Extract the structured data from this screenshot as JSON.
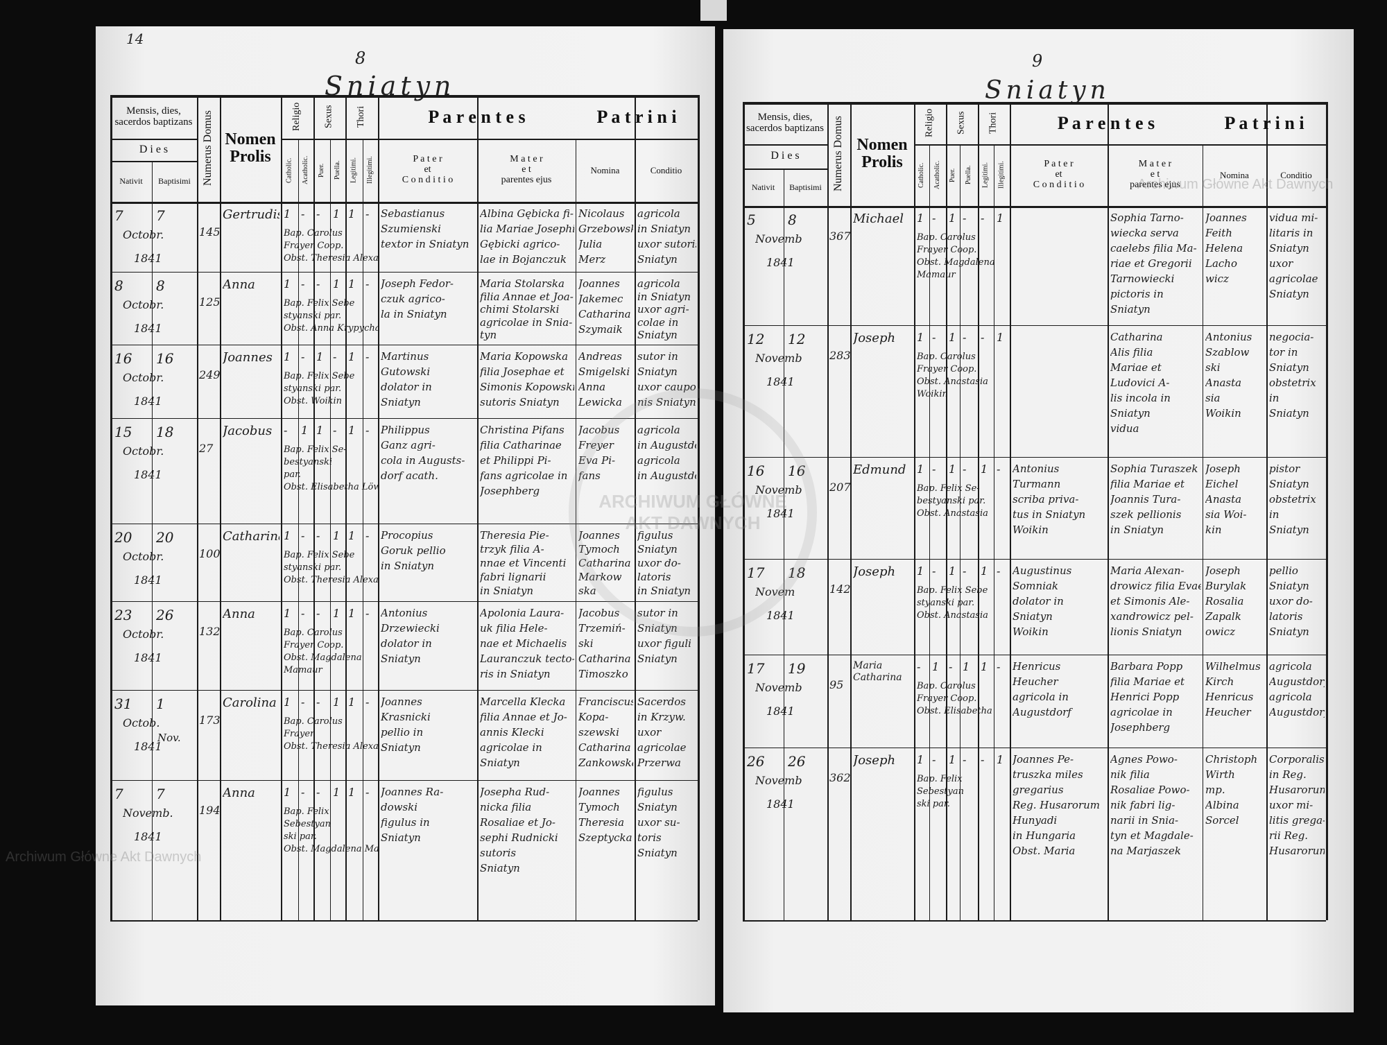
{
  "document": {
    "left_page": {
      "folio_mark": "14",
      "page_number": "8",
      "place": "Sniatyn"
    },
    "right_page": {
      "page_number": "9",
      "place": "Sniatyn"
    },
    "watermark": "Archiwum Główne Akt Dawnych",
    "seal_text": "ARCHIWUM GŁÓWNE AKT DAWNYCH"
  },
  "header": {
    "mensis": "Mensis, dies, sacerdos baptizans",
    "dies": "D i e s",
    "nativit": "Nativit",
    "baptisimi": "Baptisimi",
    "numerus_domus": "Numerus Domus",
    "nomen_prolis": "Nomen Prolis",
    "religio": "Religio",
    "catholic": "Catholic.",
    "acatholic": "Acatholic.",
    "sexus": "Sexus",
    "puer": "Puer.",
    "puella": "Puella.",
    "thori": "Thori",
    "legitimi": "Legitimi.",
    "illegitimi": "Illegitimi.",
    "parentes": "P a r e n t e s",
    "pater": "P a t e r\net\nC o n d i t i o",
    "mater": "M a t e r\ne t\nparentes ejus",
    "patrini": "P a t r i n i",
    "nomina": "Nomina",
    "conditio": "Conditio"
  },
  "left_entries": [
    {
      "nativit": "7",
      "baptisimi": "7",
      "month": "Octobr.",
      "year": "1841",
      "domus": "145",
      "nomen": "Gertrudis",
      "marks": [
        "1",
        "-",
        "-",
        "1",
        "1",
        "-"
      ],
      "baptizans": [
        "Bap. Carolus",
        "Frayer Coop.",
        "Obst. Theresia Alexandrowicz"
      ],
      "pater": [
        "Sebastianus",
        "Szumienski",
        "textor in Sniatyn"
      ],
      "mater": [
        "Albina Gębicka fi-",
        "lia Mariae Josephi",
        "Gębicki agrico-",
        "lae in Bojanczuk"
      ],
      "nomina": [
        "Nicolaus",
        "Grzebowski",
        "Julia",
        "Merz"
      ],
      "conditio": [
        "agricola",
        "in Sniatyn",
        "uxor sutoris",
        "Sniatyn"
      ]
    },
    {
      "nativit": "8",
      "baptisimi": "8",
      "month": "Octobr.",
      "year": "1841",
      "domus": "125",
      "nomen": "Anna",
      "marks": [
        "1",
        "-",
        "-",
        "1",
        "1",
        "-"
      ],
      "baptizans": [
        "Bap. Felix Sebe",
        "styanski par.",
        "Obst. Anna Krypycha"
      ],
      "pater": [
        "Joseph Fedor-",
        "czuk agrico-",
        "la in Sniatyn"
      ],
      "mater": [
        "Maria Stolarska",
        "filia Annae et Joa-",
        "chimi Stolarski",
        "agricolae in Snia-",
        "tyn"
      ],
      "nomina": [
        "Joannes",
        "Jakemec",
        "Catharina",
        "Szymaik"
      ],
      "conditio": [
        "agricola",
        "in Sniatyn",
        "uxor agri-",
        "colae in",
        "Sniatyn"
      ]
    },
    {
      "nativit": "16",
      "baptisimi": "16",
      "month": "Octobr.",
      "year": "1841",
      "domus": "249",
      "nomen": "Joannes",
      "marks": [
        "1",
        "-",
        "1",
        "-",
        "1",
        "-"
      ],
      "baptizans": [
        "Bap. Felix Sebe",
        "styanski par.",
        "Obst. Woikin"
      ],
      "pater": [
        "Martinus",
        "Gutowski",
        "dolator in",
        "Sniatyn"
      ],
      "mater": [
        "Maria Kopowska",
        "filia Josephae et",
        "Simonis Kopowski",
        "sutoris Sniatyn"
      ],
      "nomina": [
        "Andreas",
        "Smigelski",
        "Anna",
        "Lewicka"
      ],
      "conditio": [
        "sutor in",
        "Sniatyn",
        "uxor caupo-",
        "nis Sniatyn"
      ]
    },
    {
      "nativit": "15",
      "baptisimi": "18",
      "month": "Octobr.",
      "year": "1841",
      "domus": "27",
      "nomen": "Jacobus",
      "marks": [
        "-",
        "1",
        "1",
        "-",
        "1",
        "-"
      ],
      "baptizans": [
        "Bap. Felix Se-",
        "bestyanski",
        "par.",
        "Obst. Elisabetha Löwenberg"
      ],
      "pater": [
        "Philippus",
        "Ganz agri-",
        "cola in Augusts-",
        "dorf acath."
      ],
      "mater": [
        "Christina Pifans",
        "filia Catharinae",
        "et Philippi Pi-",
        "fans agricolae in",
        "Josephberg"
      ],
      "nomina": [
        "Jacobus",
        "Freyer",
        "Eva Pi-",
        "fans"
      ],
      "conditio": [
        "agricola",
        "in Augustdorf",
        "agricola",
        "in Augustdorf"
      ]
    },
    {
      "nativit": "20",
      "baptisimi": "20",
      "month": "Octobr.",
      "year": "1841",
      "domus": "100",
      "nomen": "Catharina",
      "marks": [
        "1",
        "-",
        "-",
        "1",
        "1",
        "-"
      ],
      "baptizans": [
        "Bap. Felix Sebe",
        "styanski par.",
        "Obst. Theresia Alexandrowicz"
      ],
      "pater": [
        "Procopius",
        "Goruk pellio",
        "in Sniatyn"
      ],
      "mater": [
        "Theresia Pie-",
        "trzyk filia A-",
        "nnae et Vincenti",
        "fabri lignarii",
        "in Sniatyn"
      ],
      "nomina": [
        "Joannes",
        "Tymoch",
        "Catharina",
        "Markow",
        "ska"
      ],
      "conditio": [
        "figulus",
        "Sniatyn",
        "uxor do-",
        "latoris",
        "in Sniatyn"
      ]
    },
    {
      "nativit": "23",
      "baptisimi": "26",
      "month": "Octobr.",
      "year": "1841",
      "domus": "132",
      "nomen": "Anna",
      "marks": [
        "1",
        "-",
        "-",
        "1",
        "1",
        "-"
      ],
      "baptizans": [
        "Bap. Carolus",
        "Frayer Coop.",
        "Obst. Magdalena",
        "Mamaur"
      ],
      "pater": [
        "Antonius",
        "Drzewiecki",
        "dolator in",
        "Sniatyn"
      ],
      "mater": [
        "Apolonia Laura-",
        "uk filia Hele-",
        "nae et Michaelis",
        "Lauranczuk tecto-",
        "ris in Sniatyn"
      ],
      "nomina": [
        "Jacobus",
        "Trzemiń-",
        "ski",
        "Catharina",
        "Timoszko"
      ],
      "conditio": [
        "sutor in",
        "Sniatyn",
        "uxor figuli",
        "Sniatyn"
      ]
    },
    {
      "nativit": "31",
      "baptisimi": "1",
      "month": "Octob.",
      "month2": "Nov.",
      "year": "1841",
      "domus": "173",
      "nomen": "Carolina",
      "marks": [
        "1",
        "-",
        "-",
        "1",
        "1",
        "-"
      ],
      "baptizans": [
        "Bap. Carolus",
        "Frayer",
        "Obst. Theresia Alexandrowicz"
      ],
      "pater": [
        "Joannes",
        "Krasnicki",
        "pellio in",
        "Sniatyn"
      ],
      "mater": [
        "Marcella Klecka",
        "filia Annae et Jo-",
        "annis Klecki",
        "agricolae in",
        "Sniatyn"
      ],
      "nomina": [
        "Franciscus",
        "Kopa-",
        "szewski",
        "Catharina",
        "Zankowska"
      ],
      "conditio": [
        "Sacerdos",
        "in Krzyw.",
        "uxor",
        "agricolae",
        "Przerwa"
      ]
    },
    {
      "nativit": "7",
      "baptisimi": "7",
      "month": "Novemb.",
      "year": "1841",
      "domus": "194",
      "nomen": "Anna",
      "marks": [
        "1",
        "-",
        "-",
        "1",
        "1",
        "-"
      ],
      "baptizans": [
        "Bap. Felix",
        "Sebestyan",
        "ski par.",
        "Obst. Magdalena Mamaur"
      ],
      "pater": [
        "Joannes Ra-",
        "dowski",
        "figulus in",
        "Sniatyn"
      ],
      "mater": [
        "Josepha Rud-",
        "nicka filia",
        "Rosaliae et Jo-",
        "sephi Rudnicki",
        "sutoris",
        "Sniatyn"
      ],
      "nomina": [
        "Joannes",
        "Tymoch",
        "Theresia",
        "Szeptycka"
      ],
      "conditio": [
        "figulus",
        "Sniatyn",
        "uxor su-",
        "toris",
        "Sniatyn"
      ]
    }
  ],
  "right_entries": [
    {
      "nativit": "5",
      "baptisimi": "8",
      "month": "Novemb",
      "year": "1841",
      "domus": "367",
      "nomen": "Michael",
      "marks": [
        "1",
        "-",
        "1",
        "-",
        "-",
        "1"
      ],
      "baptizans": [
        "Bap. Carolus",
        "Frayer Coop.",
        "Obst. Magdalena",
        "Mamaur"
      ],
      "pater": [],
      "mater": [
        "Sophia Tarno-",
        "wiecka serva",
        "caelebs filia Ma-",
        "riae et Gregorii",
        "Tarnowiecki",
        "pictoris in",
        "Sniatyn"
      ],
      "nomina": [
        "Joannes",
        "Feith",
        "Helena",
        "Lacho",
        "wicz"
      ],
      "conditio": [
        "vidua mi-",
        "litaris in",
        "Sniatyn",
        "uxor",
        "agricolae",
        "Sniatyn"
      ]
    },
    {
      "nativit": "12",
      "baptisimi": "12",
      "month": "Novemb",
      "year": "1841",
      "domus": "283",
      "nomen": "Joseph",
      "marks": [
        "1",
        "-",
        "1",
        "-",
        "-",
        "1"
      ],
      "baptizans": [
        "Bap. Carolus",
        "Frayer Coop.",
        "Obst. Anastasia",
        "Woikin"
      ],
      "pater": [],
      "mater": [
        "Catharina",
        "Alis filia",
        "Mariae et",
        "Ludovici A-",
        "lis incola in",
        "Sniatyn",
        "vidua"
      ],
      "nomina": [
        "Antonius",
        "Szablow",
        "ski",
        "Anasta",
        "sia",
        "Woikin"
      ],
      "conditio": [
        "negocia-",
        "tor in",
        "Sniatyn",
        "obstetrix",
        "in",
        "Sniatyn"
      ]
    },
    {
      "nativit": "16",
      "baptisimi": "16",
      "month": "Novemb",
      "year": "1841",
      "domus": "207",
      "nomen": "Edmund",
      "marks": [
        "1",
        "-",
        "1",
        "-",
        "1",
        "-"
      ],
      "baptizans": [
        "Bap. Felix Se-",
        "bestyanski par.",
        "Obst. Anastasia"
      ],
      "pater": [
        "Antonius",
        "Turmann",
        "scriba priva-",
        "tus in Sniatyn",
        "Woikin"
      ],
      "mater": [
        "Sophia Turaszek",
        "filia Mariae et",
        "Joannis Tura-",
        "szek pellionis",
        "in Sniatyn"
      ],
      "nomina": [
        "Joseph",
        "Eichel",
        "Anasta",
        "sia Woi-",
        "kin"
      ],
      "conditio": [
        "pistor",
        "Sniatyn",
        "obstetrix",
        "in",
        "Sniatyn"
      ]
    },
    {
      "nativit": "17",
      "baptisimi": "18",
      "month": "Novem",
      "year": "1841",
      "domus": "142",
      "nomen": "Joseph",
      "marks": [
        "1",
        "-",
        "1",
        "-",
        "1",
        "-"
      ],
      "baptizans": [
        "Bap. Felix Sebe",
        "styanski par.",
        "Obst. Anastasia"
      ],
      "pater": [
        "Augustinus",
        "Somniak",
        "dolator in",
        "Sniatyn",
        "Woikin"
      ],
      "mater": [
        "Maria Alexan-",
        "drowicz filia Evae",
        "et Simonis Ale-",
        "xandrowicz pel-",
        "lionis Sniatyn"
      ],
      "nomina": [
        "Joseph",
        "Burylak",
        "Rosalia",
        "Zapalk",
        "owicz"
      ],
      "conditio": [
        "pellio",
        "Sniatyn",
        "uxor do-",
        "latoris",
        "Sniatyn"
      ]
    },
    {
      "nativit": "17",
      "baptisimi": "19",
      "month": "Novemb",
      "year": "1841",
      "domus": "95",
      "nomen": "Maria Catharina",
      "marks": [
        "-",
        "1",
        "-",
        "1",
        "1",
        "-"
      ],
      "baptizans": [
        "Bap. Carolus",
        "Frayer Coop.",
        "Obst. Elisabetha"
      ],
      "pater": [
        "Henricus",
        "Heucher",
        "agricola in",
        "Augustdorf"
      ],
      "mater": [
        "Barbara Popp",
        "filia Mariae et",
        "Henrici Popp",
        "agricolae in",
        "Josephberg"
      ],
      "nomina": [
        "Wilhelmus",
        "Kirch",
        "Henricus",
        "Heucher"
      ],
      "conditio": [
        "agricola",
        "Augustdorf",
        "agricola",
        "Augustdorf"
      ]
    },
    {
      "nativit": "26",
      "baptisimi": "26",
      "month": "Novemb",
      "year": "1841",
      "domus": "362",
      "nomen": "Joseph",
      "marks": [
        "1",
        "-",
        "1",
        "-",
        "-",
        "1"
      ],
      "baptizans": [
        "Bap. Felix",
        "Sebestyan",
        "ski par."
      ],
      "pater": [
        "Joannes Pe-",
        "truszka miles",
        "gregarius",
        "Reg. Husarorum",
        "Hunyadi",
        "in Hungaria",
        "Obst. Maria"
      ],
      "mater": [
        "Agnes Powo-",
        "nik filia",
        "Rosaliae Powo-",
        "nik fabri lig-",
        "narii in Snia-",
        "tyn et Magdale-",
        "na Marjaszek"
      ],
      "nomina": [
        "Christoph",
        "Wirth",
        "mp.",
        "Albina",
        "Sorcel"
      ],
      "conditio": [
        "Corporalis",
        "in Reg.",
        "Husarorum",
        "uxor mi-",
        "litis grega-",
        "rii Reg.",
        "Husarorum"
      ]
    }
  ]
}
